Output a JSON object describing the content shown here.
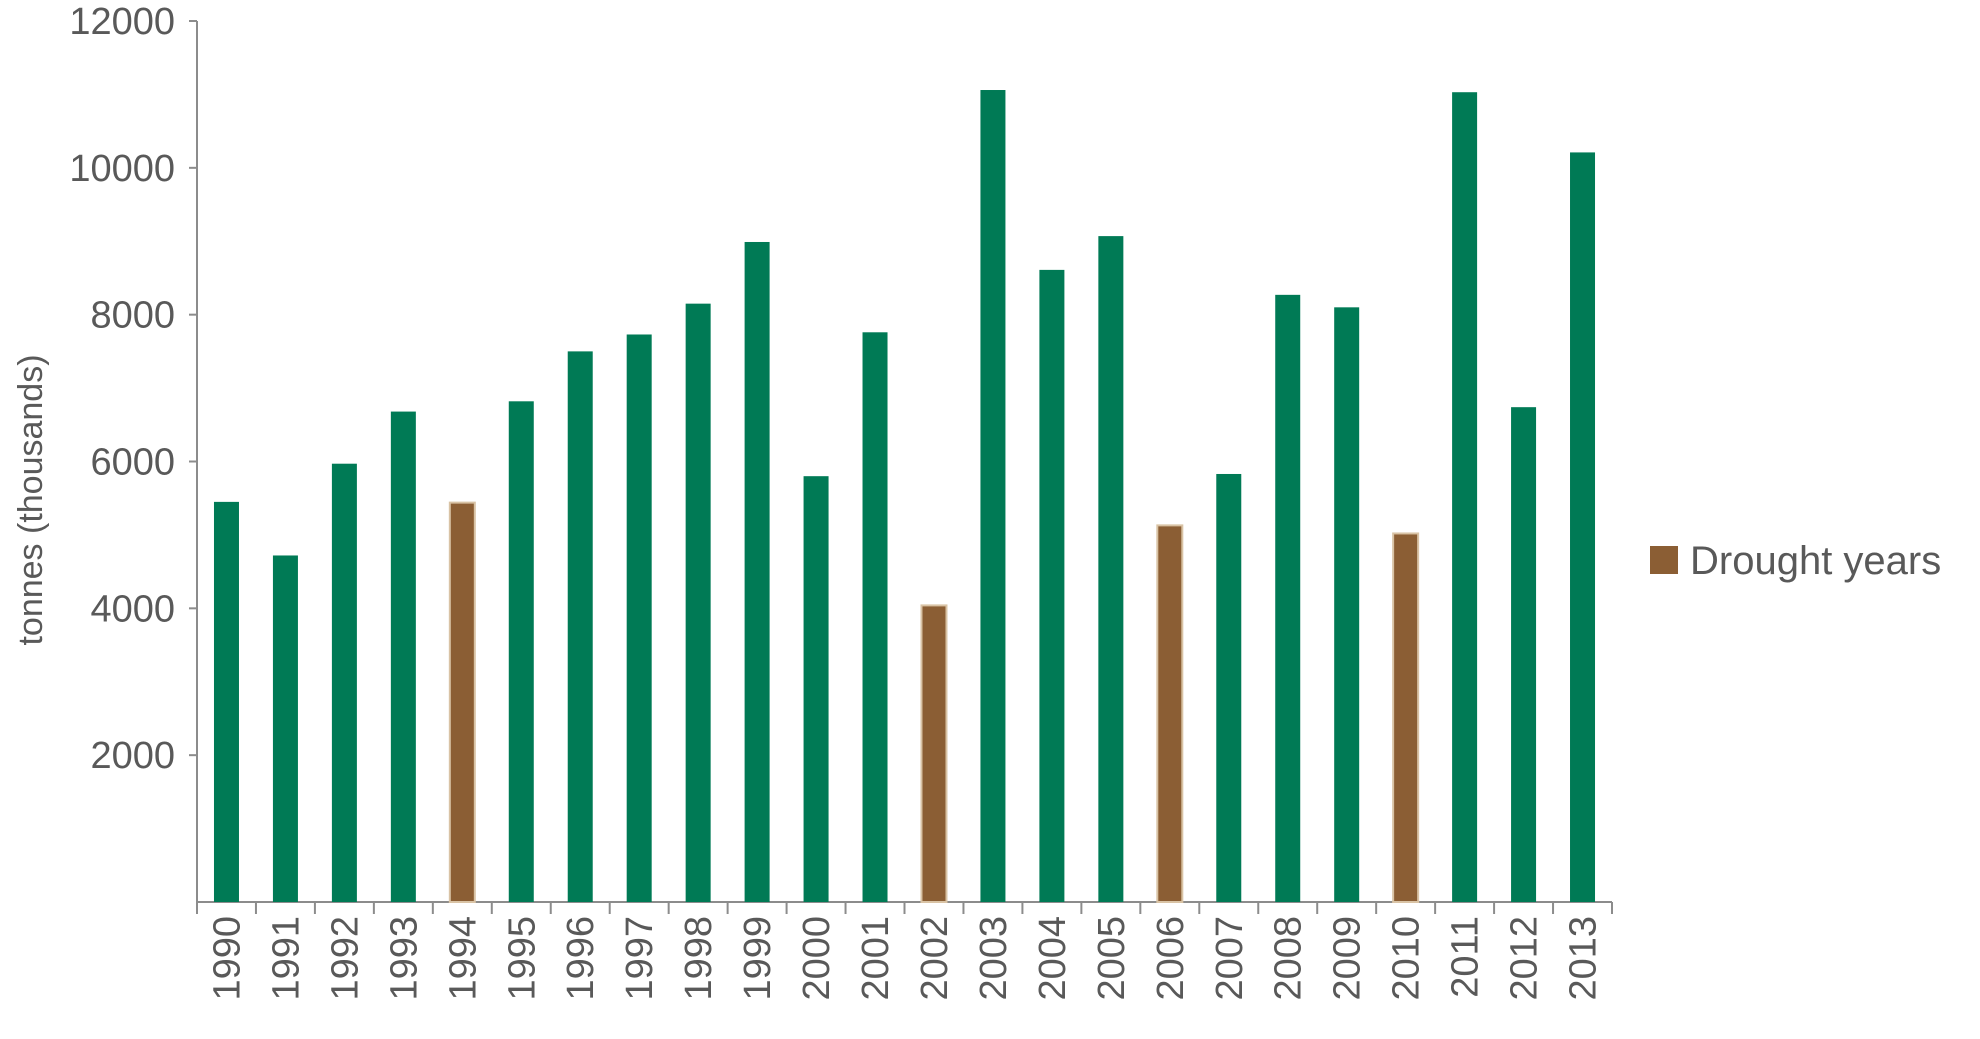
{
  "chart_data": {
    "type": "bar",
    "title": "",
    "xlabel": "",
    "ylabel": "tonnes (thousands)",
    "ylim": [
      0,
      12000
    ],
    "yticks": [
      2000,
      4000,
      6000,
      8000,
      10000,
      12000
    ],
    "categories": [
      "1990",
      "1991",
      "1992",
      "1993",
      "1994",
      "1995",
      "1996",
      "1997",
      "1998",
      "1999",
      "2000",
      "2001",
      "2002",
      "2003",
      "2004",
      "2005",
      "2006",
      "2007",
      "2008",
      "2009",
      "2010",
      "2011",
      "2012",
      "2013"
    ],
    "values": [
      5450,
      4720,
      5970,
      6680,
      5440,
      6820,
      7500,
      7730,
      8150,
      8990,
      5800,
      7760,
      4040,
      11060,
      8610,
      9070,
      5130,
      5830,
      8270,
      8100,
      5020,
      11030,
      6740,
      10210
    ],
    "drought": [
      false,
      false,
      false,
      false,
      true,
      false,
      false,
      false,
      false,
      false,
      false,
      false,
      true,
      false,
      false,
      false,
      true,
      false,
      false,
      false,
      true,
      false,
      false,
      false
    ],
    "grid": false,
    "legend": {
      "position": "right",
      "entries": [
        {
          "label": "Drought years",
          "color": "#8B5E34"
        }
      ]
    },
    "colors": {
      "normal": "#007A55",
      "drought": "#8B5E34"
    }
  }
}
